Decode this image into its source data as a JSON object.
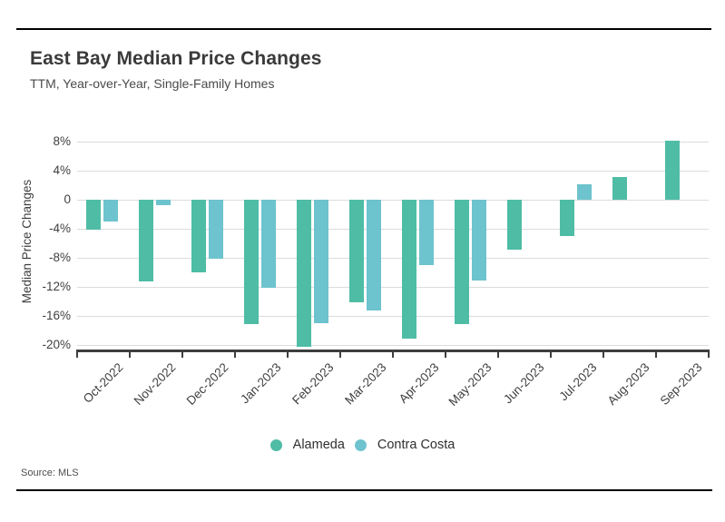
{
  "header": {
    "title": "East Bay Median Price Changes",
    "subtitle": "TTM, Year-over-Year, Single-Family Homes"
  },
  "source": "Source: MLS",
  "legend": [
    {
      "label": "Alameda",
      "color": "#4fbca6"
    },
    {
      "label": "Contra Costa",
      "color": "#6dc3ce"
    }
  ],
  "colors": {
    "alameda": "#4fbca6",
    "contra_costa": "#6dc3ce",
    "gridline": "#dcdcdc",
    "axis": "#3e3e3e",
    "tick_text": "#3f3f3f"
  },
  "chart_data": {
    "type": "bar",
    "title": "East Bay Median Price Changes",
    "subtitle": "TTM, Year-over-Year, Single-Family Homes",
    "xlabel": "",
    "ylabel": "Median Price Changes",
    "categories": [
      "Oct-2022",
      "Nov-2022",
      "Dec-2022",
      "Jan-2023",
      "Feb-2023",
      "Mar-2023",
      "Apr-2023",
      "May-2023",
      "Jun-2023",
      "Jul-2023",
      "Aug-2023",
      "Sep-2023"
    ],
    "series": [
      {
        "name": "Alameda",
        "color": "#4fbca6",
        "values": [
          -4.1,
          -11.2,
          -10.0,
          -17.1,
          -20.3,
          -14.1,
          -19.1,
          -17.1,
          -6.9,
          -5.0,
          3.1,
          8.1
        ]
      },
      {
        "name": "Contra Costa",
        "color": "#6dc3ce",
        "values": [
          -3.0,
          -0.8,
          -8.1,
          -12.1,
          -17.0,
          -15.2,
          -9.0,
          -11.1,
          null,
          2.1,
          null,
          null
        ]
      }
    ],
    "y_ticks": [
      "8%",
      "4%",
      "0",
      "-4%",
      "-8%",
      "-12%",
      "-16%",
      "-20%"
    ],
    "y_tick_values": [
      8,
      4,
      0,
      -4,
      -8,
      -12,
      -16,
      -20
    ],
    "ylim": [
      -20.9,
      9.1
    ],
    "grid": true,
    "legend_position": "bottom"
  }
}
